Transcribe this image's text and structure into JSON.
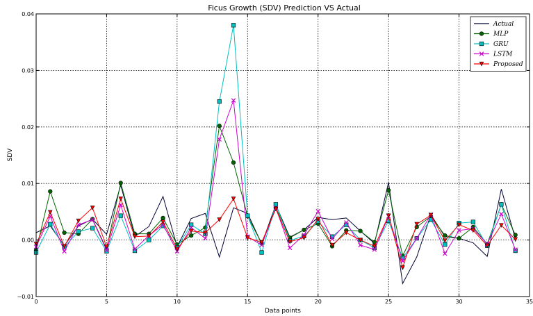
{
  "chart_data": {
    "type": "line",
    "title": "Ficus Growth (SDV) Prediction VS Actual",
    "xlabel": "Data points",
    "ylabel": "SDV",
    "xlim": [
      0,
      35
    ],
    "ylim": [
      -0.01,
      0.04
    ],
    "xticks": [
      "0",
      "5",
      "10",
      "15",
      "20",
      "25",
      "30",
      "35"
    ],
    "yticks": [
      "−0.01",
      "0.00",
      "0.01",
      "0.02",
      "0.03",
      "0.04"
    ],
    "grid": true,
    "legend_position": "top-right",
    "x": [
      0,
      1,
      2,
      3,
      4,
      5,
      6,
      7,
      8,
      9,
      10,
      11,
      12,
      13,
      14,
      15,
      16,
      17,
      18,
      19,
      20,
      21,
      22,
      23,
      24,
      25,
      26,
      27,
      28,
      29,
      30,
      31,
      32,
      33,
      34
    ],
    "series": [
      {
        "name": "Actual",
        "color": "#000033",
        "marker": "none",
        "values": [
          0.0013,
          0.0025,
          -0.001,
          0.0025,
          0.0037,
          0.001,
          0.0097,
          0.0006,
          0.0024,
          0.0077,
          -0.0012,
          0.0038,
          0.0047,
          -0.003,
          0.0057,
          0.0047,
          -0.0007,
          0.0062,
          0.0005,
          0.0018,
          0.004,
          0.0036,
          0.0039,
          0.0016,
          -0.0006,
          0.0102,
          -0.0077,
          -0.003,
          0.0045,
          0.0006,
          0.0003,
          -0.0005,
          -0.0029,
          0.009,
          0.0002
        ]
      },
      {
        "name": "MLP",
        "color": "#006400",
        "marker": "circle",
        "values": [
          -0.0018,
          0.0086,
          0.0013,
          0.0011,
          0.0037,
          -0.0016,
          0.0101,
          0.0011,
          0.0011,
          0.0039,
          -0.0008,
          0.0008,
          0.0022,
          0.0202,
          0.0137,
          0.0042,
          -0.0006,
          0.0057,
          0.0004,
          0.0018,
          0.0029,
          -0.0011,
          0.0017,
          0.0016,
          -0.0004,
          0.0088,
          -0.0028,
          0.0023,
          0.0042,
          0.0008,
          0.0003,
          0.0023,
          -0.0007,
          0.0063,
          0.0009
        ]
      },
      {
        "name": "GRU",
        "color": "#00BFBF",
        "marker": "square",
        "values": [
          -0.0022,
          0.0028,
          -0.0012,
          0.0015,
          0.0021,
          -0.002,
          0.0043,
          -0.0019,
          0.0,
          0.0025,
          -0.0013,
          0.0027,
          0.0011,
          0.0245,
          0.038,
          0.0043,
          -0.0022,
          0.0063,
          -0.0001,
          0.0007,
          0.0033,
          0.0006,
          0.0027,
          0.0,
          -0.0014,
          0.0034,
          -0.0032,
          0.0003,
          0.0036,
          -0.0008,
          0.003,
          0.0032,
          -0.001,
          0.0063,
          -0.0019
        ]
      },
      {
        "name": "LSTM",
        "color": "#CC00CC",
        "marker": "x",
        "values": [
          -0.0012,
          0.0042,
          -0.002,
          0.0027,
          0.0036,
          -0.0018,
          0.0062,
          -0.0016,
          0.0008,
          0.0027,
          -0.002,
          0.0022,
          0.0003,
          0.0178,
          0.0247,
          0.0006,
          -0.0009,
          0.0057,
          -0.0014,
          0.0009,
          0.0051,
          0.0002,
          0.0031,
          -0.0009,
          -0.0017,
          0.0042,
          -0.0037,
          0.0003,
          0.0045,
          -0.0024,
          0.0017,
          0.002,
          -0.0007,
          0.0046,
          -0.0017
        ]
      },
      {
        "name": "Proposed",
        "color": "#FF0000",
        "marker": "triangle-down",
        "values": [
          -0.0007,
          0.0049,
          -0.0011,
          0.0034,
          0.0057,
          -0.0012,
          0.0073,
          0.0006,
          0.0007,
          0.0032,
          -0.0016,
          0.0016,
          0.0013,
          0.0036,
          0.0073,
          0.0004,
          -0.0004,
          0.0055,
          -0.0003,
          0.0004,
          0.0037,
          -0.0009,
          0.0013,
          0.0,
          -0.0011,
          0.0043,
          -0.0049,
          0.0028,
          0.0044,
          -0.0001,
          0.0027,
          0.0017,
          -0.001,
          0.0026,
          0.0001
        ]
      }
    ]
  }
}
